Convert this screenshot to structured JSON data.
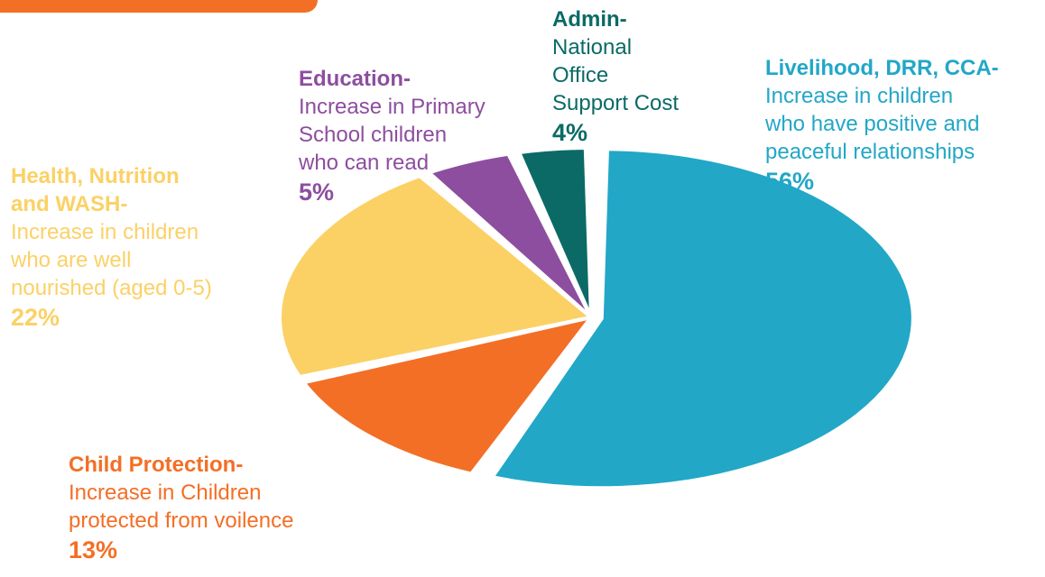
{
  "chart_data": {
    "type": "pie",
    "slices": [
      {
        "key": "livelihood",
        "heading": "Livelihood, DRR, CCA-",
        "description": [
          "Increase in children",
          "who have positive and",
          "peaceful relationships"
        ],
        "percent_label": "56%",
        "value": 56,
        "color": "#22a7c7",
        "exploded": true
      },
      {
        "key": "child",
        "heading": "Child Protection-",
        "description": [
          "Increase in Children",
          "protected from voilence"
        ],
        "percent_label": "13%",
        "value": 13,
        "color": "#f36f25",
        "exploded": false
      },
      {
        "key": "health",
        "heading": "Health, Nutrition and WASH-",
        "description": [
          "Increase in children",
          "who are well",
          "nourished (aged 0-5)"
        ],
        "percent_label": "22%",
        "value": 22,
        "color": "#fbd166",
        "exploded": false
      },
      {
        "key": "education",
        "heading": "Education-",
        "description": [
          "Increase in Primary",
          "School children",
          "who can read"
        ],
        "percent_label": "5%",
        "value": 5,
        "color": "#8d4e9f",
        "exploded": false
      },
      {
        "key": "admin",
        "heading": "Admin-",
        "description": [
          "National",
          "Office",
          "Support Cost"
        ],
        "percent_label": "4%",
        "value": 4,
        "color": "#0b6a66",
        "exploded": false
      }
    ]
  },
  "labels": {
    "livelihood": {
      "heading": "Livelihood, DRR, CCA-",
      "line1": "Increase in children",
      "line2": "who have positive and",
      "line3": "peaceful relationships",
      "pct": "56%"
    },
    "admin": {
      "heading": "Admin-",
      "line1": "National",
      "line2": "Office",
      "line3": "Support Cost",
      "pct": "4%"
    },
    "education": {
      "heading": "Education-",
      "line1": "Increase in Primary",
      "line2": "School children",
      "line3": "who can read",
      "pct": "5%"
    },
    "health": {
      "heading1": "Health, Nutrition",
      "heading2": "and WASH-",
      "line1": "Increase in children",
      "line2": "who are well",
      "line3": "nourished (aged 0-5)",
      "pct": "22%"
    },
    "child": {
      "heading": "Child Protection-",
      "line1": "Increase in Children",
      "line2": "protected from voilence",
      "pct": "13%"
    }
  }
}
